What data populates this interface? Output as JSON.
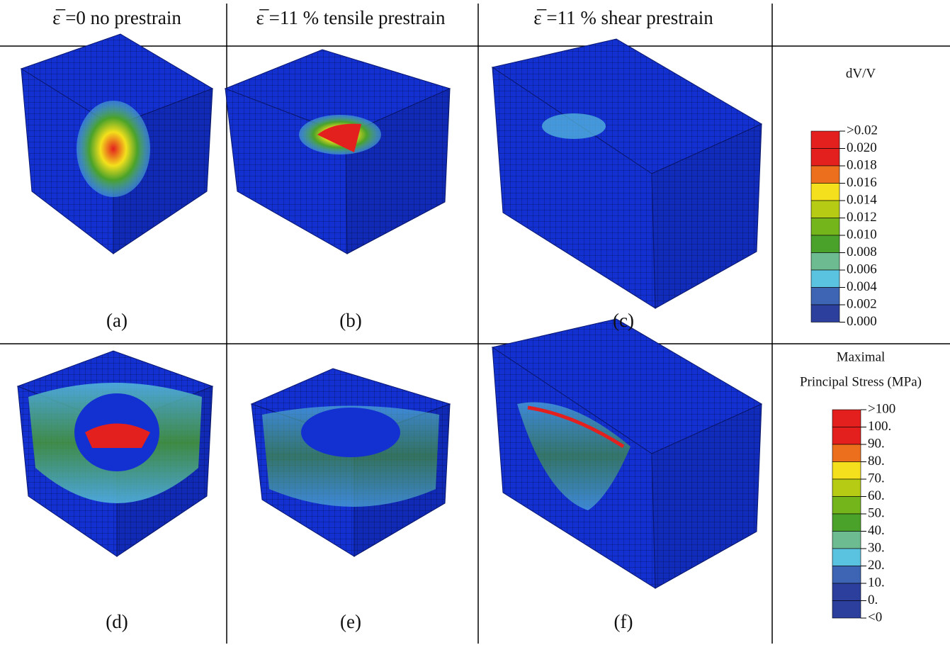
{
  "header": {
    "columns": [
      "ε̅ =0 no prestrain",
      "ε̅ =11 % tensile prestrain",
      "ε̅ =11 % shear prestrain"
    ]
  },
  "panels": [
    {
      "label": "(a)"
    },
    {
      "label": "(b)"
    },
    {
      "label": "(c)"
    },
    {
      "label": "(d)"
    },
    {
      "label": "(e)"
    },
    {
      "label": "(f)"
    }
  ],
  "legends": [
    {
      "title_lines": [
        "dV/V"
      ],
      "labels": [
        ">0.02",
        "0.020",
        "0.018",
        "0.016",
        "0.014",
        "0.012",
        "0.010",
        "0.008",
        "0.006",
        "0.004",
        "0.002",
        "0.000"
      ],
      "colors": [
        "#e3201e",
        "#e3201e",
        "#ec6f1e",
        "#f4e01c",
        "#b5cb14",
        "#74b51c",
        "#4aa22a",
        "#6dbb90",
        "#5ac3e0",
        "#3e64b4",
        "#2c3f9c"
      ]
    },
    {
      "title_lines": [
        "Maximal",
        "Principal Stress (MPa)"
      ],
      "labels": [
        ">100",
        "100.",
        "90.",
        "80.",
        "70.",
        "60.",
        "50.",
        "40.",
        "30.",
        "20.",
        "10.",
        "0.",
        "<0"
      ],
      "colors": [
        "#e3201e",
        "#e3201e",
        "#ec6f1e",
        "#f4e01c",
        "#b5cb14",
        "#74b51c",
        "#4aa22a",
        "#6dbb90",
        "#5ac3e0",
        "#3e64b4",
        "#2c3f9c",
        "#2c3f9c"
      ]
    }
  ]
}
